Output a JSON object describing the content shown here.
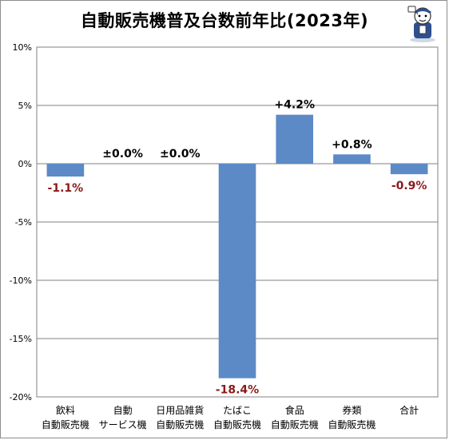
{
  "chart_data": {
    "type": "bar",
    "title": "自動販売機普及台数前年比(2023年)",
    "categories": [
      [
        "飲料",
        "自動販売機"
      ],
      [
        "自動",
        "サービス機"
      ],
      [
        "日用品雑貨",
        "自動販売機"
      ],
      [
        "たばこ",
        "自動販売機"
      ],
      [
        "食品",
        "自動販売機"
      ],
      [
        "券類",
        "自動販売機"
      ],
      [
        "合計"
      ]
    ],
    "values": [
      -1.1,
      0.0,
      0.0,
      -18.4,
      4.2,
      0.8,
      -0.9
    ],
    "data_labels": [
      "-1.1%",
      "±0.0%",
      "±0.0%",
      "-18.4%",
      "+4.2%",
      "+0.8%",
      "-0.9%"
    ],
    "ylim": [
      -20,
      10
    ],
    "yticks": [
      10,
      5,
      0,
      -5,
      -10,
      -15,
      -20
    ],
    "ytick_labels": [
      "10%",
      "5%",
      "0%",
      "-5%",
      "-10%",
      "-15%",
      "-20%"
    ],
    "grid": true,
    "colors": {
      "bar": "#5b8ac6",
      "negative_label": "#8b1a1a",
      "positive_label": "#000000",
      "grid": "#808080"
    }
  },
  "mascot": {
    "icon": "reporter-mascot-icon"
  }
}
